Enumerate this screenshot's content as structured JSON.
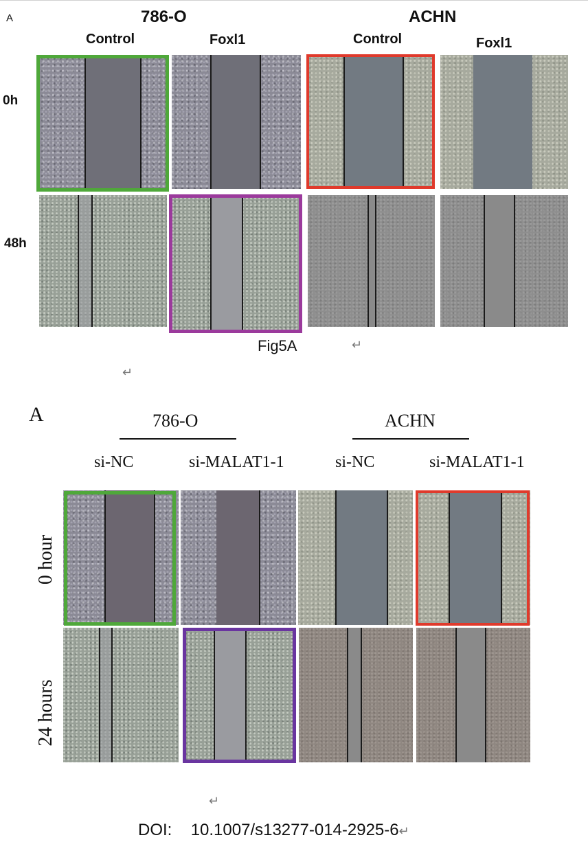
{
  "top_figure": {
    "panel_letter": "A",
    "cell_lines": [
      "786-O",
      "ACHN"
    ],
    "column_labels": [
      "Control",
      "Foxl1",
      "Control",
      "Foxl1"
    ],
    "row_labels": [
      "0h",
      "48h"
    ],
    "caption": "Fig5A",
    "return_mark": "↵"
  },
  "bottom_figure": {
    "panel_letter": "A",
    "cell_lines": [
      "786-O",
      "ACHN"
    ],
    "column_labels": [
      "si-NC",
      "si-MALAT1-1",
      "si-NC",
      "si-MALAT1-1"
    ],
    "row_labels": [
      "0 hour",
      "24 hours"
    ],
    "return_mark": "↵"
  },
  "doi": {
    "prefix": "DOI:",
    "value": "10.1007/s13277-014-2925-6",
    "return_mark": "↵"
  },
  "highlight_colors": {
    "green": "#4fa83a",
    "red": "#e03a2c",
    "purple_top": "#9b3a9c",
    "purple_bottom": "#6a35a0"
  }
}
